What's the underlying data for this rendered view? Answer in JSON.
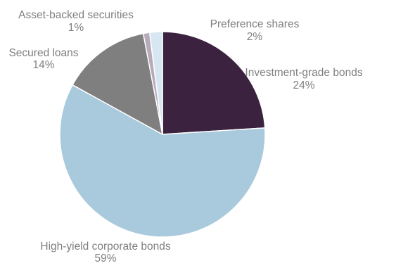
{
  "chart_data": {
    "type": "pie",
    "start_angle_deg": 0,
    "direction": "clockwise",
    "label_color": "#7f7f7f",
    "slice_border_color": "#ffffff",
    "slices": [
      {
        "name": "Investment-grade bonds",
        "value": 24,
        "pct_label": "24%",
        "color": "#3b2340"
      },
      {
        "name": "High-yield corporate bonds",
        "value": 59,
        "pct_label": "59%",
        "color": "#a9c9dc"
      },
      {
        "name": "Secured loans",
        "value": 14,
        "pct_label": "14%",
        "color": "#7f7f7f"
      },
      {
        "name": "Asset-backed securities",
        "value": 1,
        "pct_label": "1%",
        "color": "#b7aab9"
      },
      {
        "name": "Preference shares",
        "value": 2,
        "pct_label": "2%",
        "color": "#d7e7f1"
      }
    ]
  }
}
